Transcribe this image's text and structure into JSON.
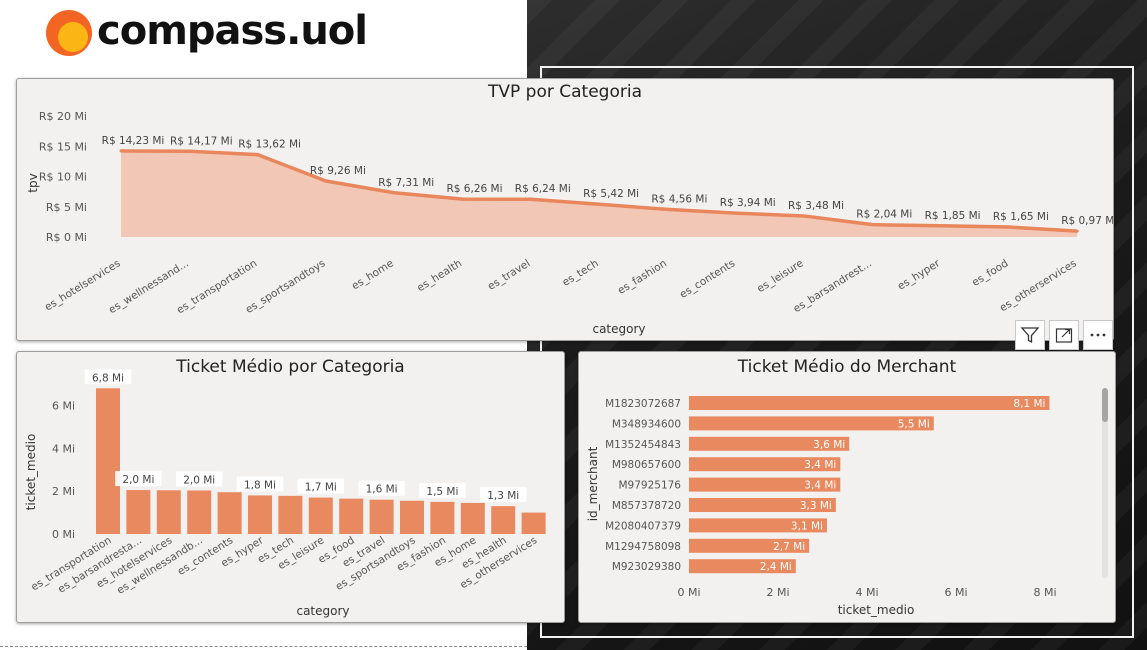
{
  "logo": {
    "text": "compass",
    "suffix": ".uol"
  },
  "colors": {
    "accent": "#e8865c",
    "area": "#f3c0aa",
    "bar": "#e8895f",
    "logo_orange": "#f26522",
    "logo_yellow": "#fbb616"
  },
  "toolbar": {
    "filter_icon": "filter-icon",
    "focus_icon": "focus-mode-icon",
    "more_icon": "more-options-icon"
  },
  "chart_data": [
    {
      "type": "area",
      "title": "TVP por Categoria",
      "xlabel": "category",
      "ylabel": "tpv",
      "ylim": [
        0,
        20
      ],
      "yticks": [
        "R$ 0 Mi",
        "R$ 5 Mi",
        "R$ 10 Mi",
        "R$ 15 Mi",
        "R$ 20 Mi"
      ],
      "categories": [
        "es_hotelservices",
        "es_wellnessand...",
        "es_transportation",
        "es_sportsandtoys",
        "es_home",
        "es_health",
        "es_travel",
        "es_tech",
        "es_fashion",
        "es_contents",
        "es_leisure",
        "es_barsandrest...",
        "es_hyper",
        "es_food",
        "es_otherservices"
      ],
      "values": [
        14.23,
        14.17,
        13.62,
        9.26,
        7.31,
        6.26,
        6.24,
        5.42,
        4.56,
        3.94,
        3.48,
        2.04,
        1.85,
        1.65,
        0.97
      ],
      "labels": [
        "R$ 14,23 Mi",
        "R$ 14,17 Mi",
        "R$ 13,62 Mi",
        "R$ 9,26 Mi",
        "R$ 7,31 Mi",
        "R$ 6,26 Mi",
        "R$ 6,24 Mi",
        "R$ 5,42 Mi",
        "R$ 4,56 Mi",
        "R$ 3,94 Mi",
        "R$ 3,48 Mi",
        "R$ 2,04 Mi",
        "R$ 1,85 Mi",
        "R$ 1,65 Mi",
        "R$ 0,97 Mi"
      ]
    },
    {
      "type": "bar",
      "title": "Ticket Médio por Categoria",
      "xlabel": "category",
      "ylabel": "ticket_medio",
      "ylim": [
        0,
        7
      ],
      "yticks": [
        "0 Mi",
        "2 Mi",
        "4 Mi",
        "6 Mi"
      ],
      "categories": [
        "es_transportation",
        "es_barsandresta...",
        "es_hotelservices",
        "es_wellnessandb...",
        "es_contents",
        "es_hyper",
        "es_tech",
        "es_leisure",
        "es_food",
        "es_travel",
        "es_sportsandtoys",
        "es_fashion",
        "es_home",
        "es_health",
        "es_otherservices"
      ],
      "values": [
        6.8,
        2.05,
        2.04,
        2.03,
        1.95,
        1.8,
        1.78,
        1.7,
        1.65,
        1.6,
        1.55,
        1.5,
        1.45,
        1.3,
        1.0
      ],
      "labels": [
        "6,8 Mi",
        "2,0 Mi",
        "",
        "2,0 Mi",
        "",
        "1,8 Mi",
        "",
        "1,7 Mi",
        "",
        "1,6 Mi",
        "",
        "1,5 Mi",
        "",
        "1,3 Mi",
        ""
      ]
    },
    {
      "type": "bar",
      "orientation": "horizontal",
      "title": "Ticket Médio do Merchant",
      "xlabel": "ticket_medio",
      "ylabel": "id_merchant",
      "xlim": [
        0,
        9
      ],
      "xticks": [
        "0 Mi",
        "2 Mi",
        "4 Mi",
        "6 Mi",
        "8 Mi"
      ],
      "categories": [
        "M1823072687",
        "M348934600",
        "M1352454843",
        "M980657600",
        "M97925176",
        "M857378720",
        "M2080407379",
        "M1294758098",
        "M923029380"
      ],
      "values": [
        8.1,
        5.5,
        3.6,
        3.4,
        3.4,
        3.3,
        3.1,
        2.7,
        2.4
      ],
      "labels": [
        "8,1 Mi",
        "5,5 Mi",
        "3,6 Mi",
        "3,4 Mi",
        "3,4 Mi",
        "3,3 Mi",
        "3,1 Mi",
        "2,7 Mi",
        "2,4 Mi"
      ]
    }
  ]
}
